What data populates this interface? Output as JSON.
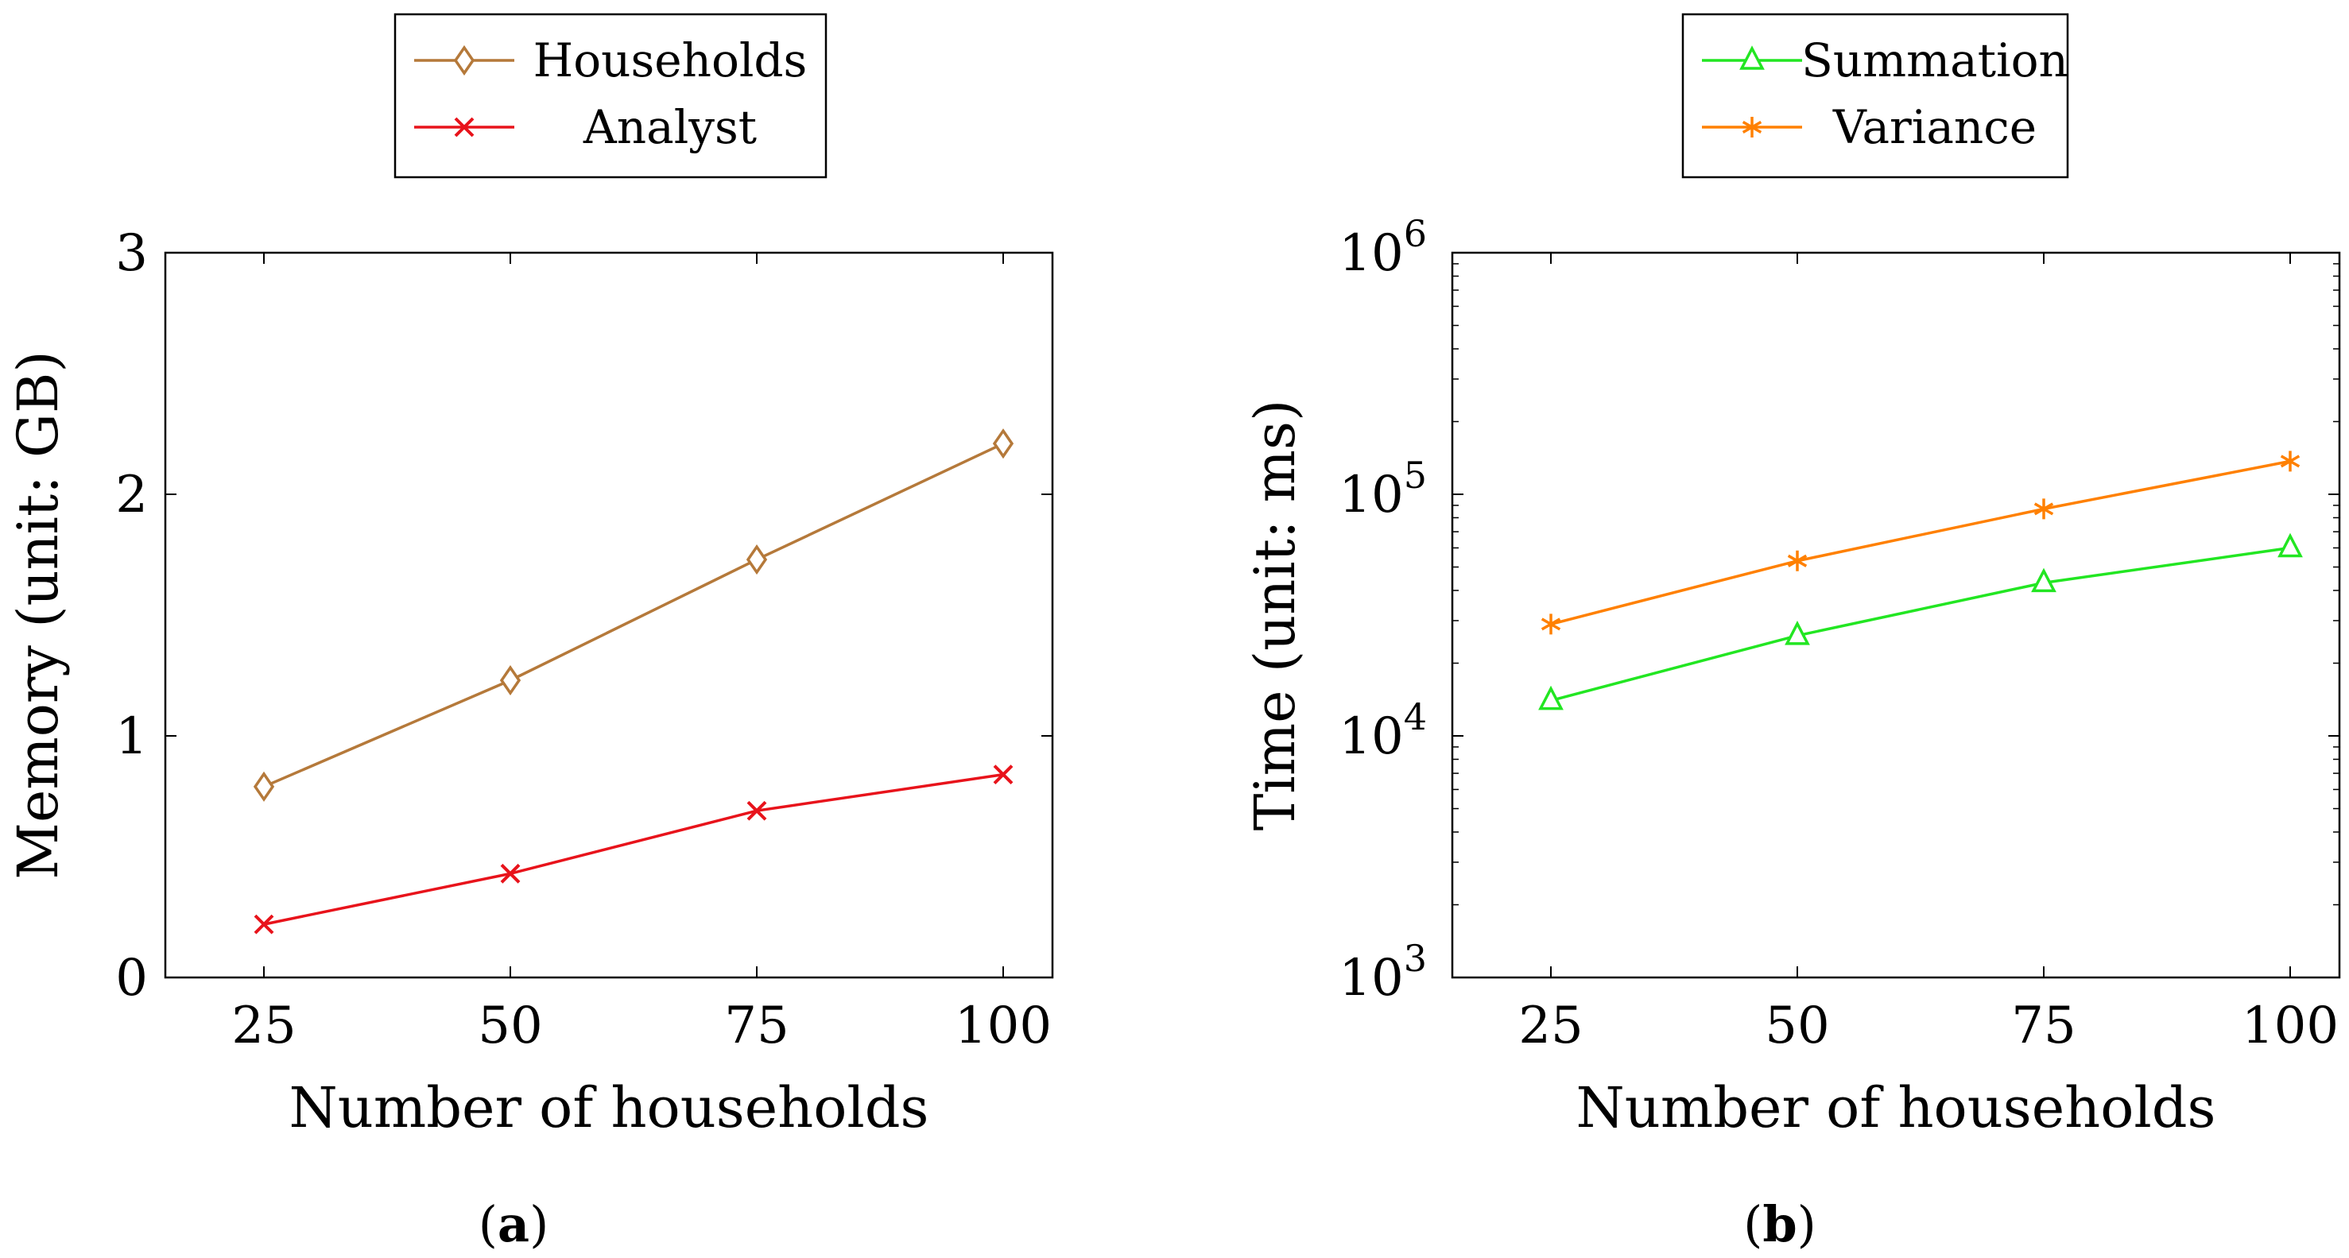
{
  "chart_data": [
    {
      "type": "line",
      "panel_label": "a",
      "xlabel": "Number of households",
      "ylabel": "Memory (unit: GB)",
      "x": [
        25,
        50,
        75,
        100
      ],
      "xlim": [
        15,
        105
      ],
      "ylim": [
        0,
        3
      ],
      "yscale": "linear",
      "xticks": [
        "25",
        "50",
        "75",
        "100"
      ],
      "yticks": [
        0,
        1,
        2,
        3
      ],
      "ytick_labels": [
        "0",
        "1",
        "2",
        "3"
      ],
      "grid": false,
      "legend_position": "top-center",
      "series": [
        {
          "name": "Households",
          "color": "#b5793a",
          "marker": "diamond",
          "values": [
            0.79,
            1.23,
            1.73,
            2.21
          ]
        },
        {
          "name": "Analyst",
          "color": "#e8131b",
          "marker": "cross",
          "values": [
            0.22,
            0.43,
            0.69,
            0.84
          ]
        }
      ]
    },
    {
      "type": "line",
      "panel_label": "b",
      "xlabel": "Number of households",
      "ylabel": "Time (unit: ms)",
      "x": [
        25,
        50,
        75,
        100
      ],
      "xlim": [
        15,
        105
      ],
      "ylim": [
        1000,
        1000000
      ],
      "yscale": "log",
      "xticks": [
        "25",
        "50",
        "75",
        "100"
      ],
      "yticks": [
        1000,
        10000,
        100000,
        1000000
      ],
      "ytick_labels": [
        {
          "base": "10",
          "exp": "3"
        },
        {
          "base": "10",
          "exp": "4"
        },
        {
          "base": "10",
          "exp": "5"
        },
        {
          "base": "10",
          "exp": "6"
        }
      ],
      "grid": false,
      "legend_position": "top-center",
      "series": [
        {
          "name": "Summation",
          "color": "#22e622",
          "marker": "triangle",
          "values": [
            14000,
            26000,
            43000,
            60000
          ]
        },
        {
          "name": "Variance",
          "color": "#ff8000",
          "marker": "star",
          "values": [
            29000,
            53000,
            87000,
            137000
          ]
        }
      ]
    }
  ]
}
